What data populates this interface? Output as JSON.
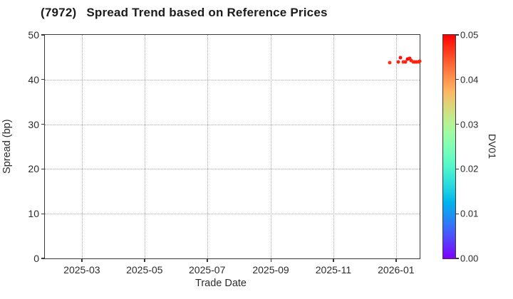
{
  "header": {
    "stock_code": "(7972)",
    "title": "Spread Trend based on Reference Prices"
  },
  "chart_data": {
    "type": "scatter",
    "title": "(7972) Spread Trend based on Reference Prices",
    "xlabel": "Trade Date",
    "ylabel": "Spread (bp)",
    "xlim": [
      "2025-01-24",
      "2026-01-24"
    ],
    "ylim": [
      0,
      50
    ],
    "yticks": [
      0,
      10,
      20,
      30,
      40,
      50
    ],
    "xticks": [
      {
        "date": "2025-03-01",
        "label": "2025-03"
      },
      {
        "date": "2025-05-01",
        "label": "2025-05"
      },
      {
        "date": "2025-07-01",
        "label": "2025-07"
      },
      {
        "date": "2025-09-01",
        "label": "2025-09"
      },
      {
        "date": "2025-11-01",
        "label": "2025-11"
      },
      {
        "date": "2026-01-01",
        "label": "2026-01"
      }
    ],
    "grid": true,
    "legend": "none",
    "series": [
      {
        "name": "spread_vs_trade_date",
        "marker": "circle",
        "points": [
          {
            "date": "2025-12-26",
            "spread_bp": 43.8,
            "dv01": 0.047
          },
          {
            "date": "2026-01-03",
            "spread_bp": 43.9,
            "dv01": 0.048
          },
          {
            "date": "2026-01-05",
            "spread_bp": 44.9,
            "dv01": 0.049
          },
          {
            "date": "2026-01-08",
            "spread_bp": 43.9,
            "dv01": 0.047
          },
          {
            "date": "2026-01-10",
            "spread_bp": 44.0,
            "dv01": 0.048
          },
          {
            "date": "2026-01-12",
            "spread_bp": 44.6,
            "dv01": 0.05
          },
          {
            "date": "2026-01-14",
            "spread_bp": 44.7,
            "dv01": 0.049
          },
          {
            "date": "2026-01-16",
            "spread_bp": 44.2,
            "dv01": 0.048
          },
          {
            "date": "2026-01-18",
            "spread_bp": 43.9,
            "dv01": 0.047
          },
          {
            "date": "2026-01-19",
            "spread_bp": 44.0,
            "dv01": 0.048
          },
          {
            "date": "2026-01-21",
            "spread_bp": 44.0,
            "dv01": 0.048
          },
          {
            "date": "2026-01-23",
            "spread_bp": 44.0,
            "dv01": 0.047
          },
          {
            "date": "2026-01-24",
            "spread_bp": 44.1,
            "dv01": 0.048
          }
        ]
      }
    ],
    "colorbar": {
      "label": "DV01",
      "min": 0.0,
      "max": 0.05,
      "ticks": [
        "0.00",
        "0.01",
        "0.02",
        "0.03",
        "0.04",
        "0.05"
      ],
      "colormap": "rainbow",
      "endpoint_colors": {
        "low": "#8000ff",
        "high": "#ff0000"
      }
    }
  }
}
